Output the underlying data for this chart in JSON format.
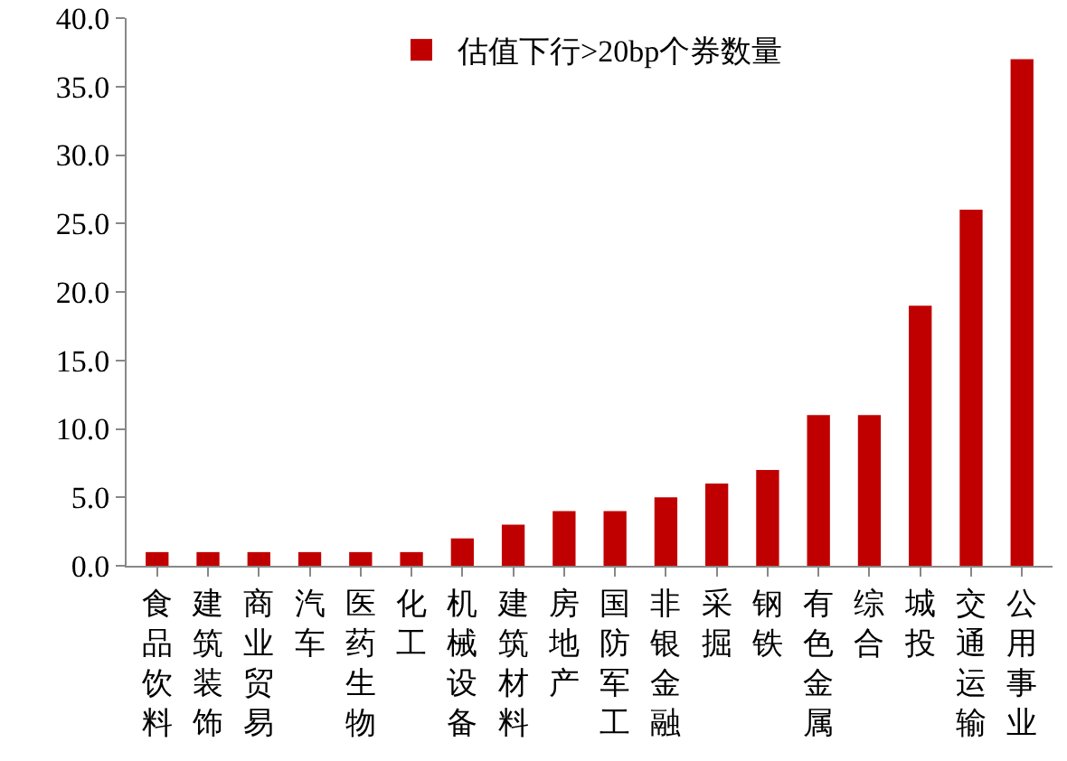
{
  "chart_data": {
    "type": "bar",
    "categories": [
      "食品饮料",
      "建筑装饰",
      "商业贸易",
      "汽车",
      "医药生物",
      "化工",
      "机械设备",
      "建筑材料",
      "房地产",
      "国防军工",
      "非银金融",
      "采掘",
      "钢铁",
      "有色金属",
      "综合",
      "城投",
      "交通运输",
      "公用事业"
    ],
    "series": [
      {
        "name": "估值下行>20bp个券数量",
        "color": "#c00000",
        "values": [
          1,
          1,
          1,
          1,
          1,
          1,
          2,
          3,
          4,
          4,
          5,
          6,
          7,
          11,
          11,
          19,
          26,
          37
        ]
      }
    ],
    "ylim": [
      0,
      40
    ],
    "yticks": [
      {
        "value": 0,
        "label": "0.0"
      },
      {
        "value": 5,
        "label": "5.0"
      },
      {
        "value": 10,
        "label": "10.0"
      },
      {
        "value": 15,
        "label": "15.0"
      },
      {
        "value": 20,
        "label": "20.0"
      },
      {
        "value": 25,
        "label": "25.0"
      },
      {
        "value": 30,
        "label": "30.0"
      },
      {
        "value": 35,
        "label": "35.0"
      },
      {
        "value": 40,
        "label": "40.0"
      }
    ],
    "grid": false,
    "legend": "top"
  }
}
